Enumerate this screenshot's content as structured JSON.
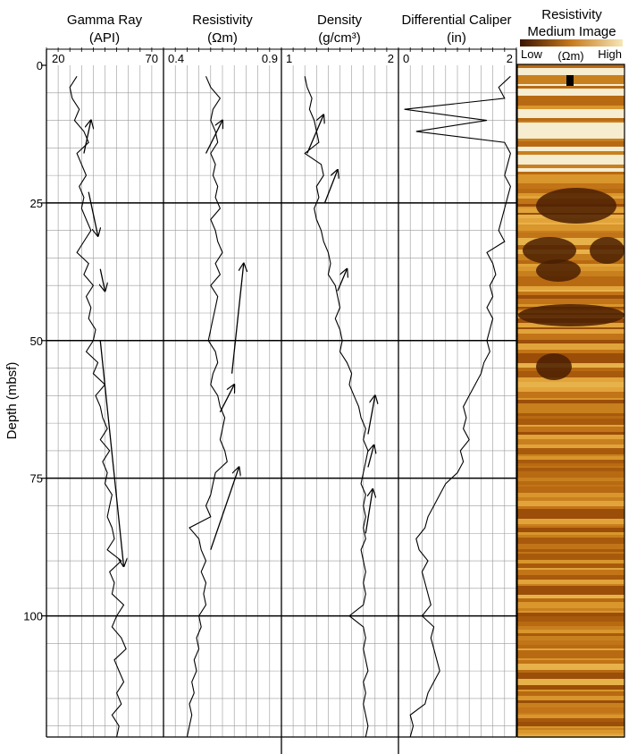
{
  "chart_data": {
    "type": "line",
    "y_axis": {
      "label": "Depth (mbsf)",
      "range": [
        0,
        122
      ],
      "ticks": [
        0,
        25,
        50,
        75,
        100
      ],
      "reversed": true
    },
    "tracks": [
      {
        "id": "gamma",
        "title": "Gamma Ray",
        "unit": "(API)",
        "range": [
          20,
          70
        ],
        "tick_labels": [
          "20",
          "70"
        ],
        "series": [
          {
            "depth": [
              2,
              4,
              6,
              8,
              10,
              12,
              14,
              16,
              18,
              20,
              22,
              24,
              26,
              28,
              30,
              32,
              34,
              36,
              38,
              40,
              42,
              44,
              46,
              48,
              50,
              52,
              54,
              56,
              58,
              60,
              62,
              64,
              66,
              68,
              70,
              72,
              74,
              76,
              78,
              80,
              82,
              84,
              86,
              88,
              90,
              92,
              94,
              96,
              98,
              100,
              102,
              104,
              106,
              108,
              110,
              112,
              114,
              116,
              118,
              120,
              122
            ],
            "value": [
              33,
              30,
              31,
              34,
              32,
              36,
              38,
              33,
              35,
              37,
              34,
              36,
              35,
              37,
              39,
              36,
              33,
              38,
              36,
              40,
              37,
              39,
              38,
              41,
              40,
              37,
              42,
              40,
              45,
              41,
              43,
              44,
              46,
              43,
              47,
              44,
              46,
              45,
              48,
              47,
              46,
              48,
              49,
              46,
              52,
              47,
              49,
              48,
              53,
              50,
              48,
              52,
              54,
              49,
              51,
              53,
              50,
              52,
              48,
              51,
              50
            ]
          }
        ],
        "trend_arrows": [
          {
            "from": [
              36,
              16
            ],
            "to": [
              39,
              10
            ]
          },
          {
            "from": [
              38,
              23
            ],
            "to": [
              42,
              31
            ]
          },
          {
            "from": [
              43,
              37
            ],
            "to": [
              45,
              41
            ]
          },
          {
            "from": [
              43,
              50
            ],
            "to": [
              53,
              91
            ]
          }
        ]
      },
      {
        "id": "resistivity",
        "title": "Resistivity",
        "unit": "(Ωm)",
        "range": [
          0.4,
          0.9
        ],
        "tick_labels": [
          "0.4",
          "0.9"
        ],
        "series": [
          {
            "depth": [
              2,
              4,
              6,
              8,
              10,
              12,
              14,
              16,
              18,
              20,
              22,
              24,
              26,
              28,
              30,
              32,
              34,
              36,
              38,
              40,
              42,
              44,
              46,
              48,
              50,
              52,
              54,
              56,
              58,
              60,
              62,
              64,
              66,
              68,
              70,
              72,
              74,
              76,
              78,
              80,
              82,
              84,
              86,
              88,
              90,
              92,
              94,
              96,
              98,
              100,
              102,
              104,
              106,
              108,
              110,
              112,
              114,
              116,
              118,
              120,
              122
            ],
            "value": [
              0.58,
              0.6,
              0.64,
              0.61,
              0.6,
              0.62,
              0.63,
              0.6,
              0.62,
              0.61,
              0.63,
              0.62,
              0.64,
              0.6,
              0.62,
              0.63,
              0.65,
              0.62,
              0.64,
              0.6,
              0.63,
              0.62,
              0.61,
              0.6,
              0.59,
              0.62,
              0.63,
              0.61,
              0.6,
              0.63,
              0.64,
              0.66,
              0.65,
              0.64,
              0.66,
              0.67,
              0.62,
              0.61,
              0.6,
              0.58,
              0.6,
              0.51,
              0.55,
              0.56,
              0.58,
              0.56,
              0.58,
              0.57,
              0.58,
              0.55,
              0.56,
              0.54,
              0.55,
              0.53,
              0.54,
              0.52,
              0.53,
              0.51,
              0.52,
              0.51,
              0.5
            ]
          }
        ],
        "trend_arrows": [
          {
            "from": [
              0.58,
              16
            ],
            "to": [
              0.65,
              10
            ]
          },
          {
            "from": [
              0.69,
              56
            ],
            "to": [
              0.74,
              36
            ]
          },
          {
            "from": [
              0.64,
              63
            ],
            "to": [
              0.7,
              58
            ]
          },
          {
            "from": [
              0.6,
              88
            ],
            "to": [
              0.72,
              73
            ]
          }
        ]
      },
      {
        "id": "density",
        "title": "Density",
        "unit": "(g/cm³)",
        "range": [
          1,
          2
        ],
        "tick_labels": [
          "1",
          "2"
        ],
        "series": [
          {
            "depth": [
              2,
              4,
              6,
              8,
              10,
              12,
              14,
              16,
              18,
              20,
              22,
              24,
              26,
              28,
              30,
              32,
              34,
              36,
              38,
              40,
              42,
              44,
              46,
              48,
              50,
              52,
              54,
              56,
              58,
              60,
              62,
              64,
              66,
              68,
              70,
              72,
              74,
              76,
              78,
              80,
              82,
              84,
              86,
              88,
              90,
              92,
              94,
              96,
              98,
              100,
              102,
              104,
              106,
              108,
              110,
              112,
              114,
              116,
              118,
              120,
              122
            ],
            "value": [
              1.2,
              1.22,
              1.26,
              1.24,
              1.28,
              1.3,
              1.32,
              1.2,
              1.34,
              1.36,
              1.3,
              1.32,
              1.28,
              1.3,
              1.34,
              1.36,
              1.4,
              1.42,
              1.4,
              1.46,
              1.48,
              1.5,
              1.46,
              1.5,
              1.52,
              1.5,
              1.56,
              1.6,
              1.58,
              1.62,
              1.66,
              1.68,
              1.72,
              1.7,
              1.74,
              1.72,
              1.7,
              1.68,
              1.72,
              1.7,
              1.72,
              1.7,
              1.72,
              1.68,
              1.7,
              1.72,
              1.7,
              1.72,
              1.7,
              1.58,
              1.7,
              1.72,
              1.7,
              1.72,
              1.74,
              1.7,
              1.72,
              1.7,
              1.72,
              1.74,
              1.72
            ]
          }
        ],
        "trend_arrows": [
          {
            "from": [
              1.22,
              16
            ],
            "to": [
              1.36,
              9
            ]
          },
          {
            "from": [
              1.37,
              25
            ],
            "to": [
              1.48,
              19
            ]
          },
          {
            "from": [
              1.48,
              41
            ],
            "to": [
              1.56,
              37
            ]
          },
          {
            "from": [
              1.74,
              67
            ],
            "to": [
              1.8,
              60
            ]
          },
          {
            "from": [
              1.74,
              73
            ],
            "to": [
              1.79,
              69
            ]
          },
          {
            "from": [
              1.72,
              85
            ],
            "to": [
              1.78,
              77
            ]
          }
        ]
      },
      {
        "id": "caliper",
        "title": "Differential Caliper",
        "unit": "(in)",
        "range": [
          0,
          2
        ],
        "tick_labels": [
          "0",
          "2"
        ],
        "series": [
          {
            "depth": [
              2,
              4,
              6,
              8,
              10,
              12,
              14,
              16,
              18,
              20,
              22,
              24,
              26,
              28,
              30,
              32,
              34,
              36,
              38,
              40,
              42,
              44,
              46,
              48,
              50,
              52,
              54,
              56,
              58,
              60,
              62,
              64,
              66,
              68,
              70,
              72,
              74,
              76,
              78,
              80,
              82,
              84,
              86,
              88,
              90,
              92,
              94,
              96,
              98,
              100,
              102,
              104,
              106,
              108,
              110,
              112,
              114,
              116,
              118,
              120,
              122
            ],
            "value": [
              1.9,
              1.7,
              1.8,
              0.1,
              1.5,
              0.3,
              1.8,
              1.9,
              1.85,
              1.8,
              1.9,
              1.85,
              1.8,
              1.75,
              1.7,
              1.8,
              1.5,
              1.6,
              1.65,
              1.55,
              1.6,
              1.5,
              1.6,
              1.55,
              1.5,
              1.55,
              1.45,
              1.4,
              1.3,
              1.2,
              1.1,
              1.15,
              1.1,
              1.2,
              1.05,
              1.1,
              1.0,
              0.8,
              0.7,
              0.6,
              0.5,
              0.45,
              0.3,
              0.35,
              0.5,
              0.4,
              0.45,
              0.5,
              0.55,
              0.4,
              0.6,
              0.55,
              0.6,
              0.65,
              0.7,
              0.6,
              0.5,
              0.45,
              0.2,
              0.25,
              0.2
            ]
          }
        ]
      }
    ],
    "image_track": {
      "title": "Resistivity Medium Image",
      "scale_low": "Low",
      "scale_unit": "(Ωm)",
      "scale_high": "High"
    }
  }
}
